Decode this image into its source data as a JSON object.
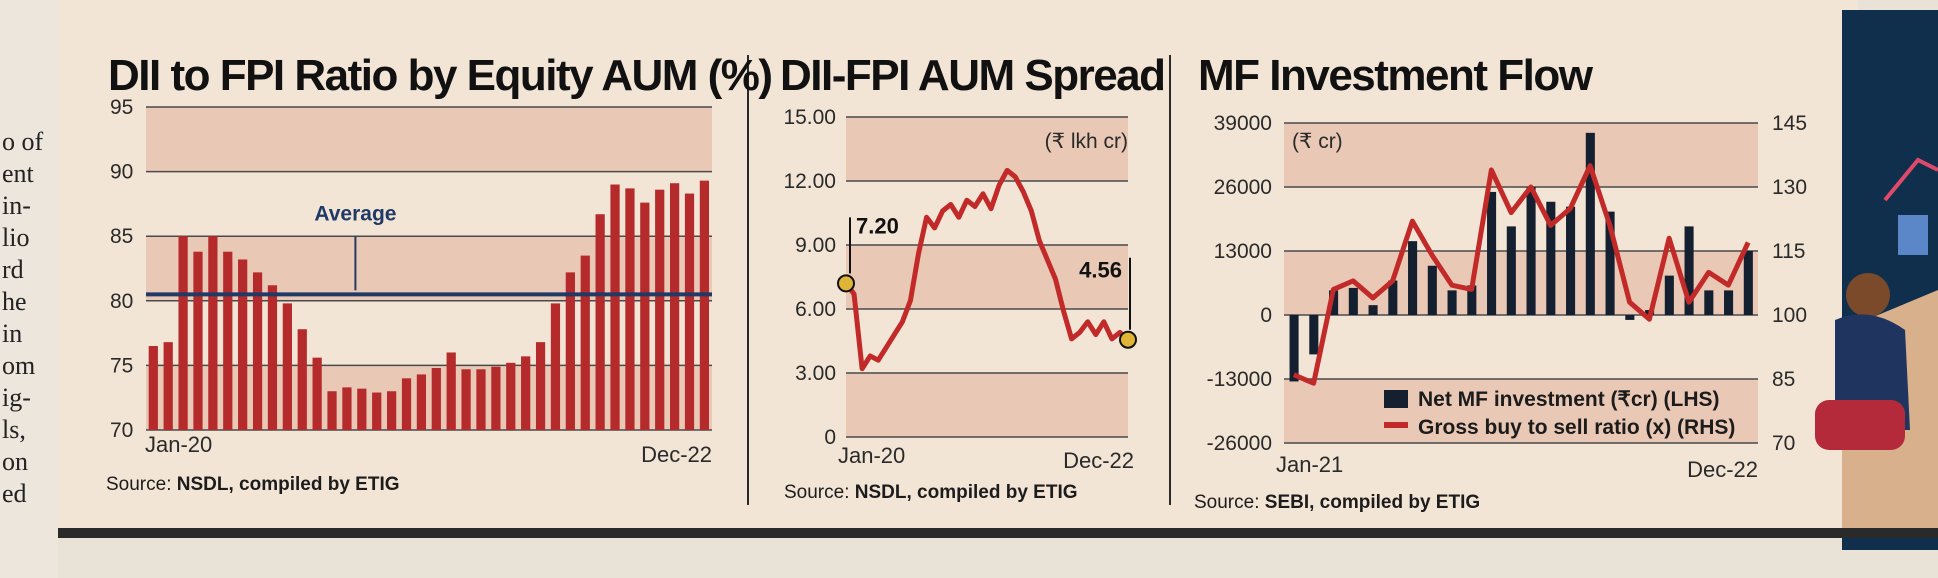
{
  "page": {
    "side_text_fragments": [
      "o of",
      "ent",
      "in-",
      "lio",
      "rd",
      "he",
      "in",
      "om",
      "ig-",
      "ls,",
      "on",
      "ed"
    ]
  },
  "chart_data": [
    {
      "type": "bar",
      "title": "DII to FPI Ratio by Equity AUM (%)",
      "x_start_label": "Jan-20",
      "x_end_label": "Dec-22",
      "y_ticks": [
        "95",
        "90",
        "85",
        "80",
        "75",
        "70"
      ],
      "ylim": [
        70,
        95
      ],
      "values": [
        76.5,
        76.8,
        85.0,
        83.8,
        85.0,
        83.8,
        83.2,
        82.2,
        81.2,
        79.8,
        77.8,
        75.6,
        73.0,
        73.3,
        73.2,
        72.9,
        73.0,
        74.0,
        74.3,
        74.8,
        76.0,
        74.7,
        74.7,
        74.9,
        75.2,
        75.7,
        76.8,
        79.8,
        82.2,
        83.5,
        86.7,
        89.0,
        88.7,
        87.6,
        88.6,
        89.1,
        88.3,
        89.3
      ],
      "average_value": 80.5,
      "average_label": "Average",
      "color": "#b52a2a",
      "source": {
        "prefix": "Source: ",
        "body": "NSDL, compiled by ETIG"
      }
    },
    {
      "type": "line",
      "title": "DII-FPI AUM Spread",
      "unit": "(₹ lkh cr)",
      "x_start_label": "Jan-20",
      "x_end_label": "Dec-22",
      "y_ticks": [
        "15.00",
        "12.00",
        "9.00",
        "6.00",
        "3.00",
        "0"
      ],
      "ylim": [
        0,
        15
      ],
      "values": [
        7.2,
        6.7,
        3.2,
        3.8,
        3.6,
        4.2,
        4.8,
        5.4,
        6.4,
        8.6,
        10.3,
        9.8,
        10.6,
        10.9,
        10.3,
        11.1,
        10.8,
        11.4,
        10.7,
        11.8,
        12.5,
        12.2,
        11.5,
        10.6,
        9.2,
        8.3,
        7.4,
        5.9,
        4.6,
        4.9,
        5.4,
        4.8,
        5.4,
        4.6,
        4.9,
        4.56
      ],
      "start_label": "7.20",
      "end_label": "4.56",
      "color": "#c22a2a",
      "source": {
        "prefix": "Source: ",
        "body": "NSDL, compiled by ETIG"
      }
    },
    {
      "type": "bar+line",
      "title": "MF Investment Flow",
      "unit": "(₹ cr)",
      "x_start_label": "Jan-21",
      "x_end_label": "Dec-22",
      "y_ticks_left": [
        "39000",
        "26000",
        "13000",
        "0",
        "-13000",
        "-26000"
      ],
      "ylim_left": [
        -26000,
        39000
      ],
      "y_ticks_right": [
        "145",
        "130",
        "115",
        "100",
        "85",
        "70"
      ],
      "ylim_right": [
        70,
        145
      ],
      "series": [
        {
          "name": "Net MF investment (₹cr) (LHS)",
          "type": "bar",
          "color": "#142030",
          "values": [
            -13500,
            -8000,
            5000,
            5500,
            2000,
            7000,
            15000,
            10000,
            5000,
            6000,
            25000,
            18000,
            26000,
            23000,
            22000,
            37000,
            21000,
            -1000,
            1000,
            8000,
            18000,
            5000,
            5000,
            13000
          ]
        },
        {
          "name": "Gross buy to sell ratio (x) (RHS)",
          "type": "line",
          "color": "#c22a2a",
          "values": [
            86,
            84,
            106,
            108,
            104,
            108,
            122,
            114,
            107,
            106,
            134,
            124,
            130,
            121,
            125,
            135,
            121,
            103,
            99,
            118,
            103,
            110,
            107,
            117
          ]
        }
      ],
      "source": {
        "prefix": "Source: ",
        "body": "SEBI, compiled by ETIG"
      }
    }
  ]
}
